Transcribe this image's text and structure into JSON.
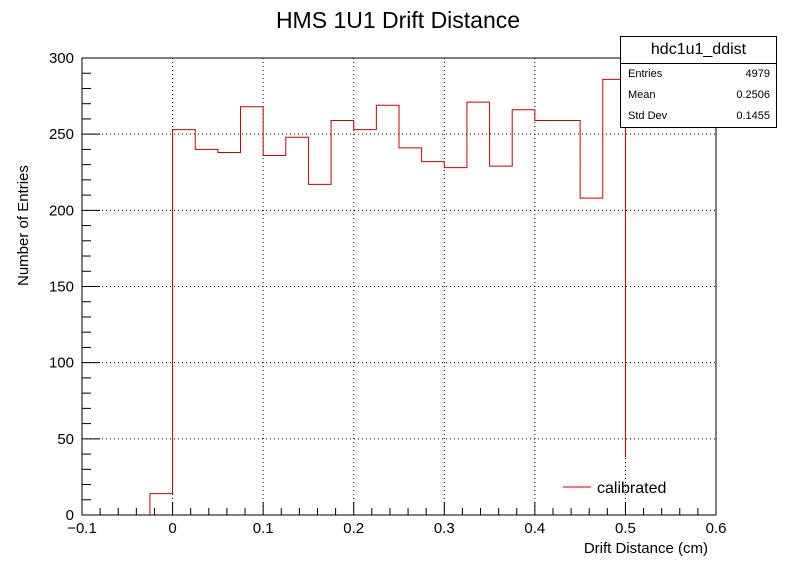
{
  "chart_data": {
    "type": "histogram",
    "title": "HMS 1U1 Drift Distance",
    "xlabel": "Drift Distance (cm)",
    "ylabel": "Number of Entries",
    "xlim": [
      -0.1,
      0.6
    ],
    "ylim": [
      0,
      300
    ],
    "xticks": [
      "−0.1",
      "0",
      "0.1",
      "0.2",
      "0.3",
      "0.4",
      "0.5",
      "0.6"
    ],
    "yticks": [
      "0",
      "50",
      "100",
      "150",
      "200",
      "250",
      "300"
    ],
    "grid": true,
    "bin_edges": [
      -0.025,
      0,
      0.025,
      0.05,
      0.075,
      0.1,
      0.125,
      0.15,
      0.175,
      0.2,
      0.225,
      0.25,
      0.275,
      0.3,
      0.325,
      0.35,
      0.375,
      0.4,
      0.425,
      0.45,
      0.475,
      0.5
    ],
    "series": [
      {
        "name": "calibrated",
        "color": "#cc0000",
        "values": [
          14,
          253,
          240,
          238,
          268,
          236,
          248,
          217,
          259,
          253,
          269,
          241,
          232,
          228,
          271,
          229,
          266,
          259,
          259,
          208,
          286
        ],
        "last_bin_drop_to": 38
      }
    ],
    "legend": {
      "position": "bottom-right",
      "entries": [
        "calibrated"
      ]
    }
  },
  "stats": {
    "title": "hdc1u1_ddist",
    "rows": [
      {
        "label": "Entries",
        "value": "4979"
      },
      {
        "label": "Mean",
        "value": "0.2506"
      },
      {
        "label": "Std Dev",
        "value": "0.1455"
      }
    ]
  }
}
